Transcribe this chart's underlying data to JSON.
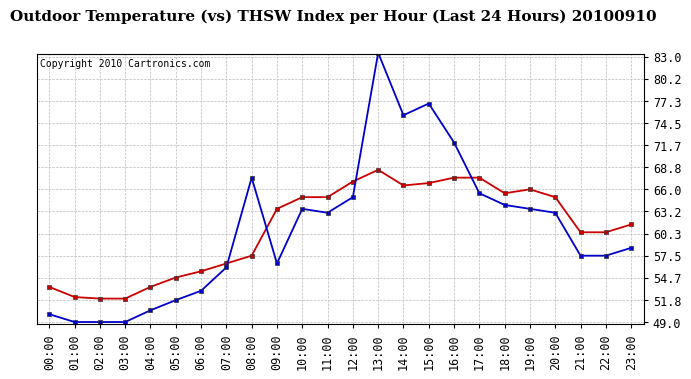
{
  "title": "Outdoor Temperature (vs) THSW Index per Hour (Last 24 Hours) 20100910",
  "copyright": "Copyright 2010 Cartronics.com",
  "x_labels": [
    "00:00",
    "01:00",
    "02:00",
    "03:00",
    "04:00",
    "05:00",
    "06:00",
    "07:00",
    "08:00",
    "09:00",
    "10:00",
    "11:00",
    "12:00",
    "13:00",
    "14:00",
    "15:00",
    "16:00",
    "17:00",
    "18:00",
    "19:00",
    "20:00",
    "21:00",
    "22:00",
    "23:00"
  ],
  "y_ticks": [
    49.0,
    51.8,
    54.7,
    57.5,
    60.3,
    63.2,
    66.0,
    68.8,
    71.7,
    74.5,
    77.3,
    80.2,
    83.0
  ],
  "y_min": 49.0,
  "y_max": 83.0,
  "temp_red": [
    53.5,
    52.2,
    52.0,
    52.0,
    53.5,
    54.7,
    55.5,
    56.5,
    57.5,
    63.5,
    65.0,
    65.0,
    67.0,
    68.5,
    66.5,
    66.8,
    67.5,
    67.5,
    65.5,
    66.0,
    65.0,
    60.5,
    60.5,
    61.5
  ],
  "thsw_blue": [
    50.0,
    49.0,
    49.0,
    49.0,
    50.5,
    51.8,
    53.0,
    56.0,
    67.5,
    56.5,
    63.5,
    63.0,
    65.0,
    83.5,
    75.5,
    77.0,
    72.0,
    65.5,
    64.0,
    63.5,
    63.0,
    57.5,
    57.5,
    58.5
  ],
  "red_color": "#cc0000",
  "blue_color": "#0000cc",
  "background_color": "#ffffff",
  "grid_color": "#bbbbbb",
  "title_fontsize": 11,
  "copyright_fontsize": 7,
  "tick_fontsize": 8.5
}
